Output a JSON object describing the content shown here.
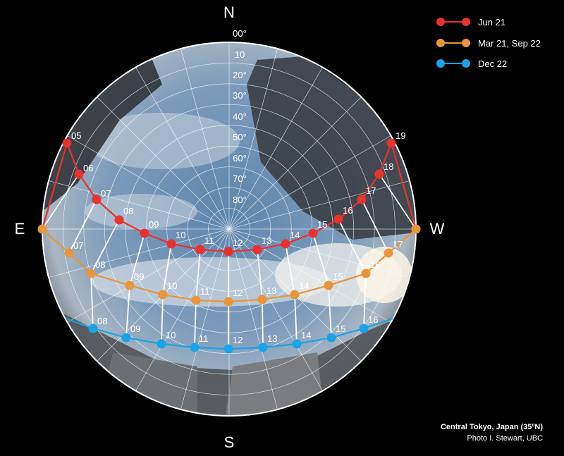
{
  "compass": {
    "north": "N",
    "south": "S",
    "east": "E",
    "west": "W"
  },
  "altitude_labels": [
    "00°",
    "10",
    "20°",
    "30°",
    "40°",
    "50°",
    "60°",
    "70°",
    "80°"
  ],
  "legend": [
    {
      "label": "Jun 21",
      "color": "#e8322e"
    },
    {
      "label": "Mar 21, Sep 22",
      "color": "#e8963a"
    },
    {
      "label": "Dec 22",
      "color": "#1aa3e8"
    }
  ],
  "sun_paths": {
    "jun21": [
      "05",
      "06",
      "07",
      "08",
      "09",
      "10",
      "11",
      "12",
      "13",
      "14",
      "15",
      "16",
      "17",
      "18",
      "19"
    ],
    "equinox": [
      "07",
      "08",
      "09",
      "10",
      "11",
      "12",
      "13",
      "14",
      "15",
      "16",
      "17"
    ],
    "dec22": [
      "08",
      "09",
      "10",
      "11",
      "12",
      "13",
      "14",
      "15",
      "16"
    ]
  },
  "credit": {
    "location": "Central Tokyo, Japan (35ºN)",
    "photo": "Photo I. Stewart, UBC"
  },
  "colors": {
    "background": "#000000",
    "grid": "#ffffff"
  }
}
